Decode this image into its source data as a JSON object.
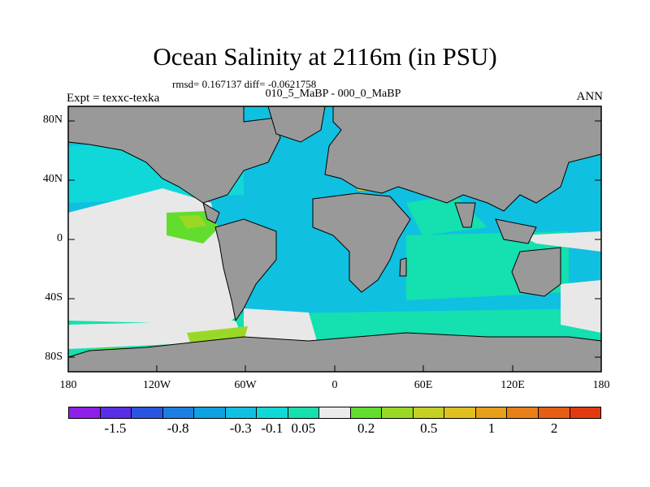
{
  "header": {
    "title": "Ocean Salinity at 2116m (in PSU)",
    "rmsd": "rmsd= 0.167137 diff= -0.0621758",
    "subtitle": "010_5_MaBP - 000_0_MaBP",
    "left_label": "Expt = texxc-texka",
    "right_label": "ANN"
  },
  "map": {
    "lat_labels": [
      "80N",
      "40N",
      "0",
      "40S",
      "80S"
    ],
    "lon_labels": [
      "180",
      "120W",
      "60W",
      "0",
      "60E",
      "120E",
      "180"
    ],
    "land_color": "#999999",
    "near_zero_color": "#e8e8e8"
  },
  "colorbar": {
    "colors": [
      "#8f1fe8",
      "#5a2ee6",
      "#2a55e3",
      "#1c7fe0",
      "#10a1e0",
      "#10c0e0",
      "#10d8d8",
      "#14e0b0",
      "#ebebeb",
      "#62dd2e",
      "#9ad826",
      "#c5d022",
      "#e0c01e",
      "#e6a01a",
      "#e88018",
      "#e65e14",
      "#e23a10"
    ],
    "labels": [
      "-1.5",
      "-0.8",
      "-0.3",
      "-0.1",
      "0.05",
      "0.2",
      "0.5",
      "1",
      "2"
    ]
  }
}
